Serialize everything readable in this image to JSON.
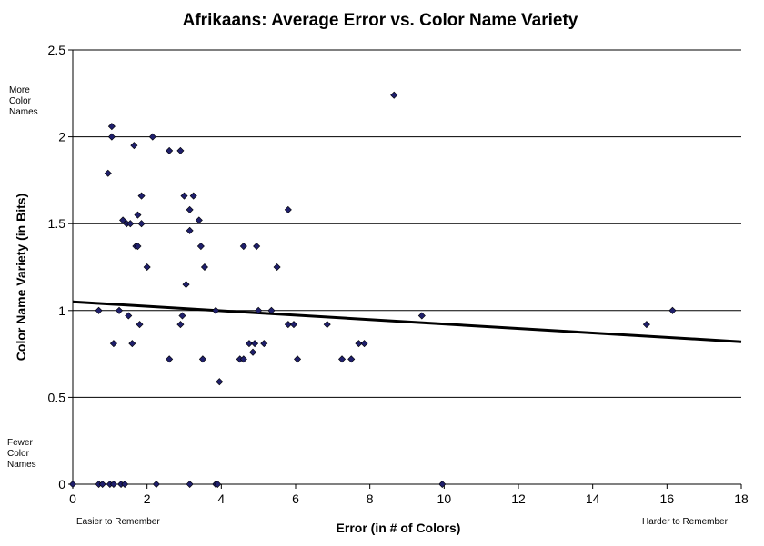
{
  "chart_data": {
    "type": "scatter",
    "title": "Afrikaans:  Average Error vs. Color Name Variety",
    "xlabel": "Error (in # of Colors)",
    "ylabel": "Color Name Variety (in Bits)",
    "xlim": [
      0,
      18
    ],
    "ylim": [
      0,
      2.5
    ],
    "x_ticks": [
      0,
      2,
      4,
      6,
      8,
      10,
      12,
      14,
      16,
      18
    ],
    "y_ticks": [
      0,
      0.5,
      1,
      1.5,
      2,
      2.5
    ],
    "y_tick_labels": [
      "0",
      "0.5",
      "1",
      "1.5",
      "2",
      "2.5"
    ],
    "grid": "horizontal",
    "legend": "none",
    "annotations": {
      "y_top": [
        "More",
        "Color",
        "Names"
      ],
      "y_bottom": [
        "Fewer",
        "Color",
        "Names"
      ],
      "x_left": "Easier to Remember",
      "x_right": "Harder to Remember"
    },
    "marker_color": "#1f1f6b",
    "trendline": {
      "type": "linear",
      "x": [
        0,
        18
      ],
      "y": [
        1.05,
        0.82
      ]
    },
    "points": [
      [
        0,
        0
      ],
      [
        0.7,
        0
      ],
      [
        0.8,
        0
      ],
      [
        1.0,
        0
      ],
      [
        1.1,
        0
      ],
      [
        1.3,
        0
      ],
      [
        1.4,
        0
      ],
      [
        2.25,
        0
      ],
      [
        3.15,
        0
      ],
      [
        3.85,
        0
      ],
      [
        3.9,
        0
      ],
      [
        9.95,
        0
      ],
      [
        0.7,
        1.0
      ],
      [
        0.95,
        1.79
      ],
      [
        1.05,
        2.06
      ],
      [
        1.05,
        2.0
      ],
      [
        1.1,
        0.81
      ],
      [
        1.25,
        1.0
      ],
      [
        1.35,
        1.52
      ],
      [
        1.45,
        1.5
      ],
      [
        1.5,
        0.97
      ],
      [
        1.55,
        1.5
      ],
      [
        1.6,
        0.81
      ],
      [
        1.65,
        1.95
      ],
      [
        1.7,
        1.37
      ],
      [
        1.75,
        1.37
      ],
      [
        1.75,
        1.55
      ],
      [
        1.8,
        0.92
      ],
      [
        1.85,
        1.66
      ],
      [
        1.85,
        1.5
      ],
      [
        2.0,
        1.25
      ],
      [
        2.15,
        2.0
      ],
      [
        2.6,
        0.72
      ],
      [
        2.6,
        1.92
      ],
      [
        2.9,
        1.92
      ],
      [
        2.9,
        0.92
      ],
      [
        2.95,
        0.97
      ],
      [
        3.0,
        1.66
      ],
      [
        3.05,
        1.15
      ],
      [
        3.15,
        1.58
      ],
      [
        3.15,
        1.46
      ],
      [
        3.25,
        1.66
      ],
      [
        3.4,
        1.52
      ],
      [
        3.45,
        1.37
      ],
      [
        3.5,
        0.72
      ],
      [
        3.55,
        1.25
      ],
      [
        3.85,
        1.0
      ],
      [
        3.95,
        0.59
      ],
      [
        4.5,
        0.72
      ],
      [
        4.6,
        0.72
      ],
      [
        4.6,
        1.37
      ],
      [
        4.75,
        0.81
      ],
      [
        4.85,
        0.76
      ],
      [
        4.9,
        0.81
      ],
      [
        4.95,
        1.37
      ],
      [
        5.0,
        1.0
      ],
      [
        5.15,
        0.81
      ],
      [
        5.35,
        1.0
      ],
      [
        5.5,
        1.25
      ],
      [
        5.8,
        0.92
      ],
      [
        5.8,
        1.58
      ],
      [
        5.95,
        0.92
      ],
      [
        6.05,
        0.72
      ],
      [
        6.85,
        0.92
      ],
      [
        7.25,
        0.72
      ],
      [
        7.5,
        0.72
      ],
      [
        7.7,
        0.81
      ],
      [
        7.85,
        0.81
      ],
      [
        8.65,
        2.24
      ],
      [
        9.4,
        0.97
      ],
      [
        15.45,
        0.92
      ],
      [
        16.15,
        1.0
      ]
    ]
  }
}
